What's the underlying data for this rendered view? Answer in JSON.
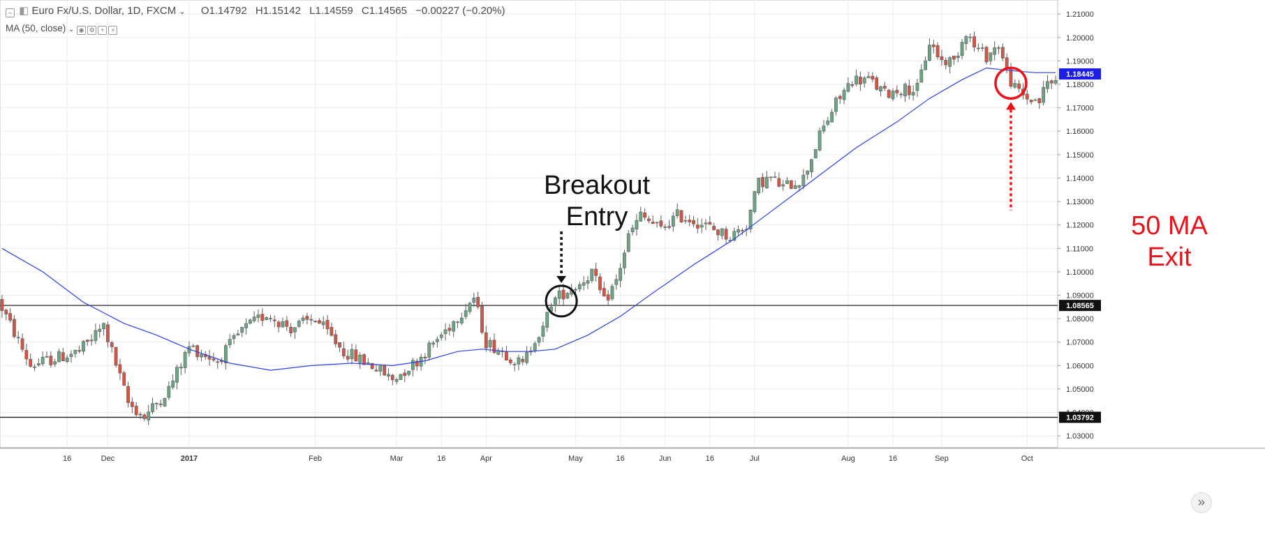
{
  "header": {
    "symbol": "Euro Fx/U.S. Dollar, 1D, FXCM",
    "open": "O1.14792",
    "high": "H1.15142",
    "low": "L1.14559",
    "close": "C1.14565",
    "change": "−0.00227 (−0.20%)",
    "indicator": "MA (50, close)"
  },
  "annotations": {
    "breakout": "Breakout\nEntry",
    "exit": "50 MA\nExit"
  },
  "colors": {
    "up_fill": "#6ba583",
    "down_fill": "#d75442",
    "wick": "#5b5b5b",
    "ma": "#2b3ee8",
    "exit": "#e8131b",
    "price_tag": "#1c1ee8"
  },
  "chart_data": {
    "type": "candlestick",
    "ylim": [
      1.025,
      1.216
    ],
    "y_ticks": [
      "1.03000",
      "1.04000",
      "1.05000",
      "1.06000",
      "1.07000",
      "1.08000",
      "1.09000",
      "1.10000",
      "1.11000",
      "1.12000",
      "1.13000",
      "1.14000",
      "1.15000",
      "1.16000",
      "1.17000",
      "1.18000",
      "1.19000",
      "1.20000",
      "1.21000"
    ],
    "x_ticks": [
      {
        "label": "16",
        "x": 16
      },
      {
        "label": "Dec",
        "x": 26
      },
      {
        "label": "2017",
        "x": 46
      },
      {
        "label": "Feb",
        "x": 77
      },
      {
        "label": "Mar",
        "x": 97
      },
      {
        "label": "16",
        "x": 108
      },
      {
        "label": "Apr",
        "x": 119
      },
      {
        "label": "May",
        "x": 141
      },
      {
        "label": "16",
        "x": 152
      },
      {
        "label": "Jun",
        "x": 163
      },
      {
        "label": "16",
        "x": 174
      },
      {
        "label": "Jul",
        "x": 185
      },
      {
        "label": "Aug",
        "x": 208
      },
      {
        "label": "16",
        "x": 219
      },
      {
        "label": "Sep",
        "x": 231
      },
      {
        "label": "Oct",
        "x": 252
      }
    ],
    "support_line": 1.08565,
    "lower_line": 1.03792,
    "price_labels": [
      "1.18445",
      "1.08565",
      "1.03792"
    ],
    "current_price": 1.18445,
    "key_points": [
      [
        0,
        1.088
      ],
      [
        8,
        1.06
      ],
      [
        20,
        1.066
      ],
      [
        26,
        1.077
      ],
      [
        32,
        1.044
      ],
      [
        36,
        1.038
      ],
      [
        42,
        1.05
      ],
      [
        47,
        1.068
      ],
      [
        54,
        1.062
      ],
      [
        60,
        1.075
      ],
      [
        66,
        1.082
      ],
      [
        72,
        1.076
      ],
      [
        78,
        1.08
      ],
      [
        85,
        1.066
      ],
      [
        92,
        1.06
      ],
      [
        97,
        1.054
      ],
      [
        103,
        1.062
      ],
      [
        110,
        1.075
      ],
      [
        114,
        1.083
      ],
      [
        117,
        1.089
      ],
      [
        120,
        1.07
      ],
      [
        125,
        1.065
      ],
      [
        129,
        1.06
      ],
      [
        132,
        1.072
      ],
      [
        134,
        1.075
      ],
      [
        136,
        1.087
      ],
      [
        139,
        1.091
      ],
      [
        143,
        1.095
      ],
      [
        146,
        1.1
      ],
      [
        149,
        1.087
      ],
      [
        152,
        1.096
      ],
      [
        155,
        1.115
      ],
      [
        158,
        1.124
      ],
      [
        163,
        1.118
      ],
      [
        167,
        1.124
      ],
      [
        171,
        1.122
      ],
      [
        176,
        1.118
      ],
      [
        180,
        1.115
      ],
      [
        184,
        1.12
      ],
      [
        187,
        1.138
      ],
      [
        190,
        1.14
      ],
      [
        193,
        1.136
      ],
      [
        198,
        1.14
      ],
      [
        202,
        1.158
      ],
      [
        206,
        1.172
      ],
      [
        210,
        1.182
      ],
      [
        214,
        1.182
      ],
      [
        218,
        1.176
      ],
      [
        222,
        1.178
      ],
      [
        226,
        1.178
      ],
      [
        229,
        1.198
      ],
      [
        232,
        1.19
      ],
      [
        235,
        1.19
      ],
      [
        238,
        1.203
      ],
      [
        240,
        1.196
      ],
      [
        243,
        1.192
      ],
      [
        246,
        1.197
      ],
      [
        248,
        1.185
      ],
      [
        250,
        1.178
      ],
      [
        253,
        1.174
      ],
      [
        256,
        1.173
      ],
      [
        258,
        1.181
      ]
    ],
    "ma_points": [
      [
        0,
        1.11
      ],
      [
        10,
        1.1
      ],
      [
        20,
        1.087
      ],
      [
        30,
        1.078
      ],
      [
        38,
        1.073
      ],
      [
        46,
        1.067
      ],
      [
        56,
        1.061
      ],
      [
        66,
        1.058
      ],
      [
        76,
        1.06
      ],
      [
        86,
        1.061
      ],
      [
        96,
        1.06
      ],
      [
        104,
        1.062
      ],
      [
        112,
        1.066
      ],
      [
        118,
        1.067
      ],
      [
        124,
        1.066
      ],
      [
        130,
        1.066
      ],
      [
        136,
        1.067
      ],
      [
        144,
        1.073
      ],
      [
        152,
        1.081
      ],
      [
        160,
        1.091
      ],
      [
        170,
        1.103
      ],
      [
        180,
        1.114
      ],
      [
        190,
        1.127
      ],
      [
        200,
        1.14
      ],
      [
        210,
        1.153
      ],
      [
        220,
        1.164
      ],
      [
        228,
        1.174
      ],
      [
        236,
        1.182
      ],
      [
        242,
        1.187
      ],
      [
        247,
        1.186
      ],
      [
        254,
        1.185
      ],
      [
        259,
        1.185
      ]
    ],
    "n_bars": 260
  }
}
